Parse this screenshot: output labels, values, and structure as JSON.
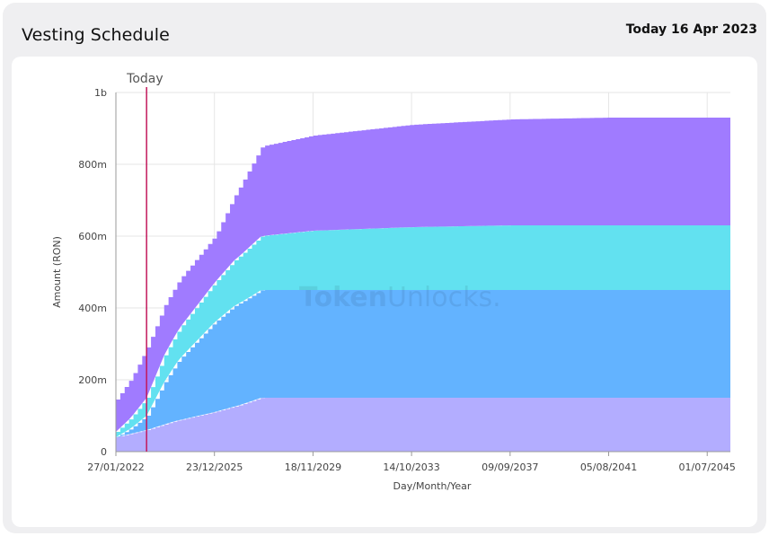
{
  "header": {
    "title": "Vesting Schedule",
    "today_text": "Today 16 Apr 2023"
  },
  "watermark": {
    "text_bold": "Token",
    "text_light": "Unlocks."
  },
  "chart_data": {
    "type": "area",
    "stacked": true,
    "xlabel": "Day/Month/Year",
    "ylabel": "Amount (RON)",
    "x_range": [
      "2022-01-27",
      "2046-06-01"
    ],
    "ylim": [
      0,
      1000000000
    ],
    "x_ticks": [
      "27/01/2022",
      "23/12/2025",
      "18/11/2029",
      "14/10/2033",
      "09/09/2037",
      "05/08/2041",
      "01/07/2045"
    ],
    "x_tick_dates": [
      "2022-01-27",
      "2025-12-23",
      "2029-11-18",
      "2033-10-14",
      "2037-09-09",
      "2041-08-05",
      "2045-07-01"
    ],
    "y_ticks": [
      "0",
      "200m",
      "400m",
      "600m",
      "800m",
      "1b"
    ],
    "y_tick_values": [
      0,
      200000000,
      400000000,
      600000000,
      800000000,
      1000000000
    ],
    "today_marker": {
      "label": "Today",
      "date": "2023-04-16"
    },
    "grid": true,
    "legend": "none",
    "series": [
      {
        "color": "#b3adff",
        "points": [
          [
            "2022-01-27",
            40000000
          ],
          [
            "2023-04-16",
            60000000
          ],
          [
            "2024-06-01",
            85000000
          ],
          [
            "2025-12-23",
            110000000
          ],
          [
            "2027-01-01",
            130000000
          ],
          [
            "2027-11-01",
            150000000
          ],
          [
            "2046-06-01",
            150000000
          ]
        ]
      },
      {
        "color": "#63b3ff",
        "points": [
          [
            "2022-01-27",
            0
          ],
          [
            "2022-09-01",
            15000000
          ],
          [
            "2023-04-16",
            40000000
          ],
          [
            "2024-01-01",
            120000000
          ],
          [
            "2024-08-01",
            170000000
          ],
          [
            "2025-12-23",
            250000000
          ],
          [
            "2026-10-01",
            280000000
          ],
          [
            "2027-11-01",
            300000000
          ],
          [
            "2046-06-01",
            300000000
          ]
        ]
      },
      {
        "color": "#62e1f0",
        "points": [
          [
            "2022-01-27",
            15000000
          ],
          [
            "2022-09-01",
            30000000
          ],
          [
            "2023-04-16",
            50000000
          ],
          [
            "2024-01-01",
            75000000
          ],
          [
            "2025-12-23",
            110000000
          ],
          [
            "2027-11-01",
            150000000
          ],
          [
            "2029-11-18",
            165000000
          ],
          [
            "2033-10-14",
            175000000
          ],
          [
            "2037-09-09",
            180000000
          ],
          [
            "2046-06-01",
            180000000
          ]
        ]
      },
      {
        "color": "#a07bff",
        "points": [
          [
            "2022-01-27",
            90000000
          ],
          [
            "2022-09-01",
            110000000
          ],
          [
            "2023-04-16",
            140000000
          ],
          [
            "2024-01-01",
            140000000
          ],
          [
            "2025-12-23",
            130000000
          ],
          [
            "2027-11-01",
            250000000
          ],
          [
            "2029-11-18",
            265000000
          ],
          [
            "2033-10-14",
            285000000
          ],
          [
            "2037-09-09",
            295000000
          ],
          [
            "2041-08-05",
            300000000
          ],
          [
            "2046-06-01",
            300000000
          ]
        ]
      }
    ]
  }
}
